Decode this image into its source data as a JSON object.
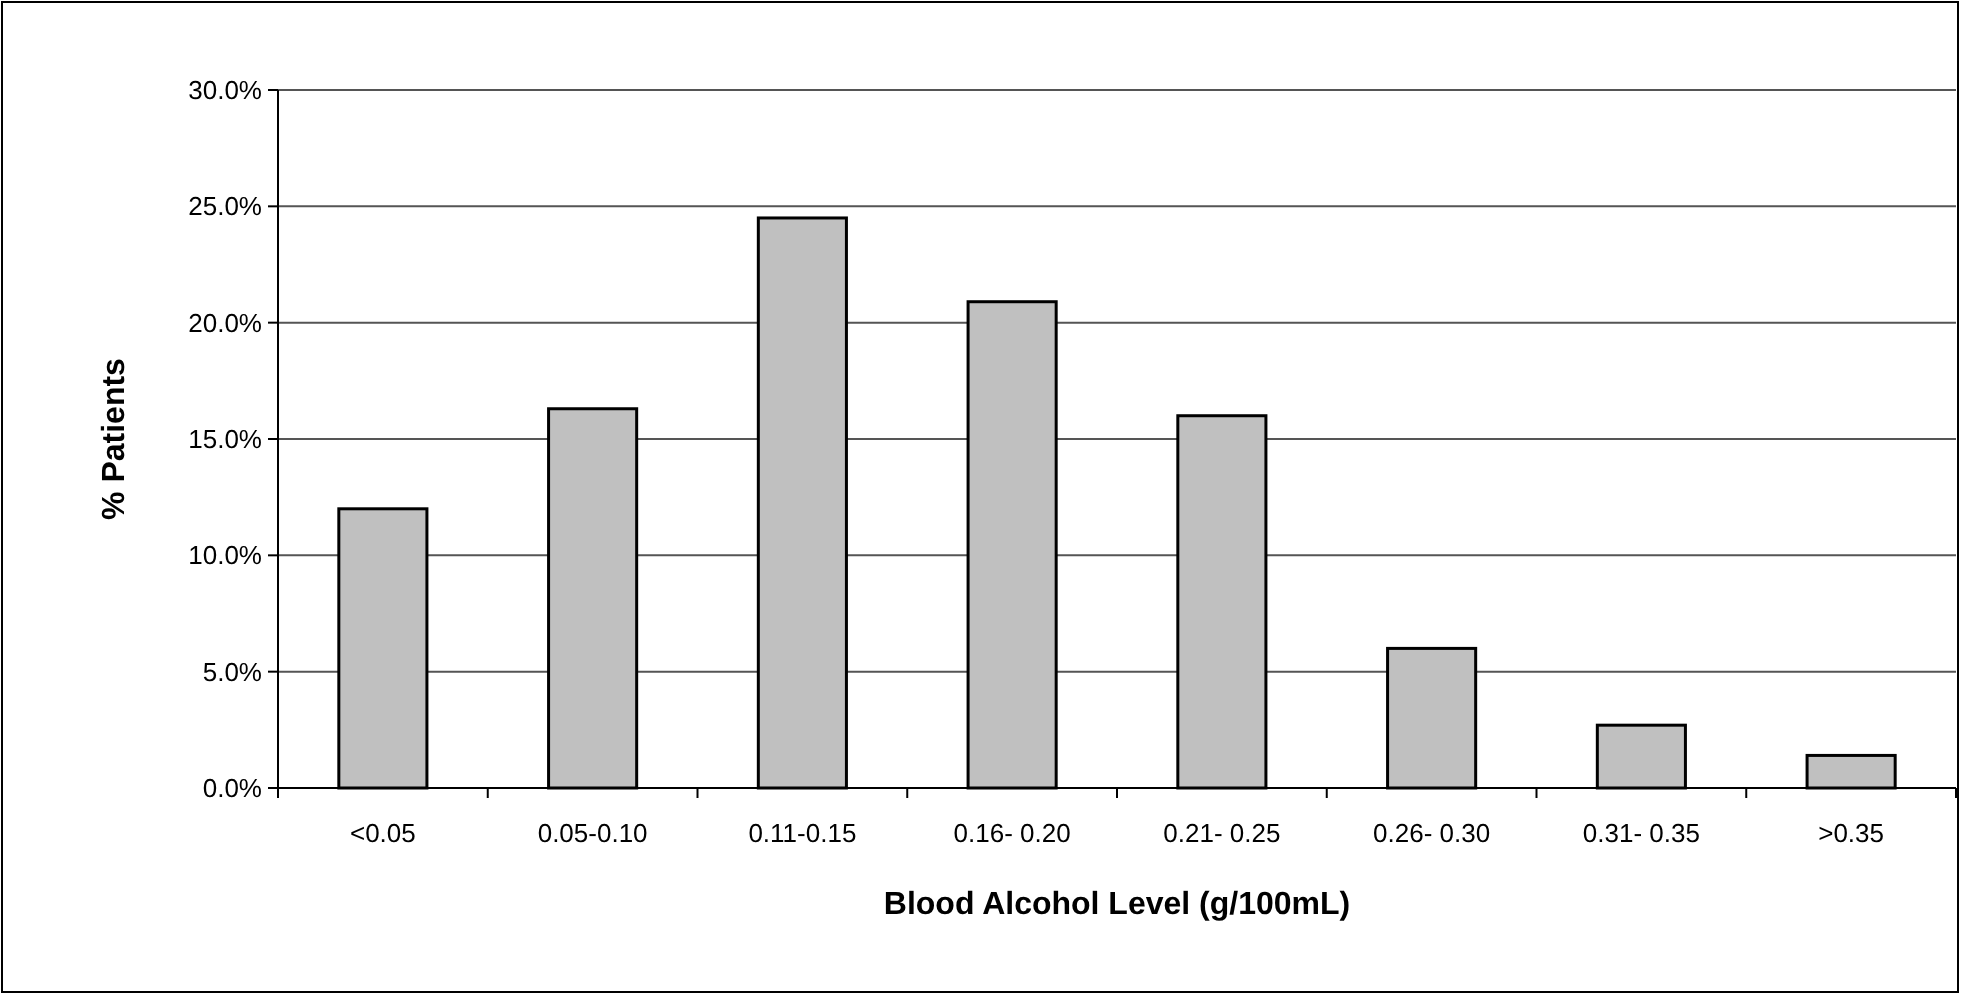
{
  "chart_data": {
    "type": "bar",
    "xlabel": "Blood Alcohol Level (g/100mL)",
    "ylabel": "% Patients",
    "categories": [
      "<0.05",
      "0.05-0.10",
      "0.11-0.15",
      "0.16- 0.20",
      "0.21- 0.25",
      "0.26- 0.30",
      "0.31- 0.35",
      ">0.35"
    ],
    "values": [
      12.0,
      16.3,
      24.5,
      20.9,
      16.0,
      6.0,
      2.7,
      1.4
    ],
    "color": "#c0c0c0",
    "ylim": [
      0,
      30
    ],
    "yticks": [
      {
        "value": 0,
        "label": "0.0%"
      },
      {
        "value": 5,
        "label": "5.0%"
      },
      {
        "value": 10,
        "label": "10.0%"
      },
      {
        "value": 15,
        "label": "15.0%"
      },
      {
        "value": 20,
        "label": "20.0%"
      },
      {
        "value": 25,
        "label": "25.0%"
      },
      {
        "value": 30,
        "label": "30.0%"
      }
    ],
    "grid": "y"
  }
}
